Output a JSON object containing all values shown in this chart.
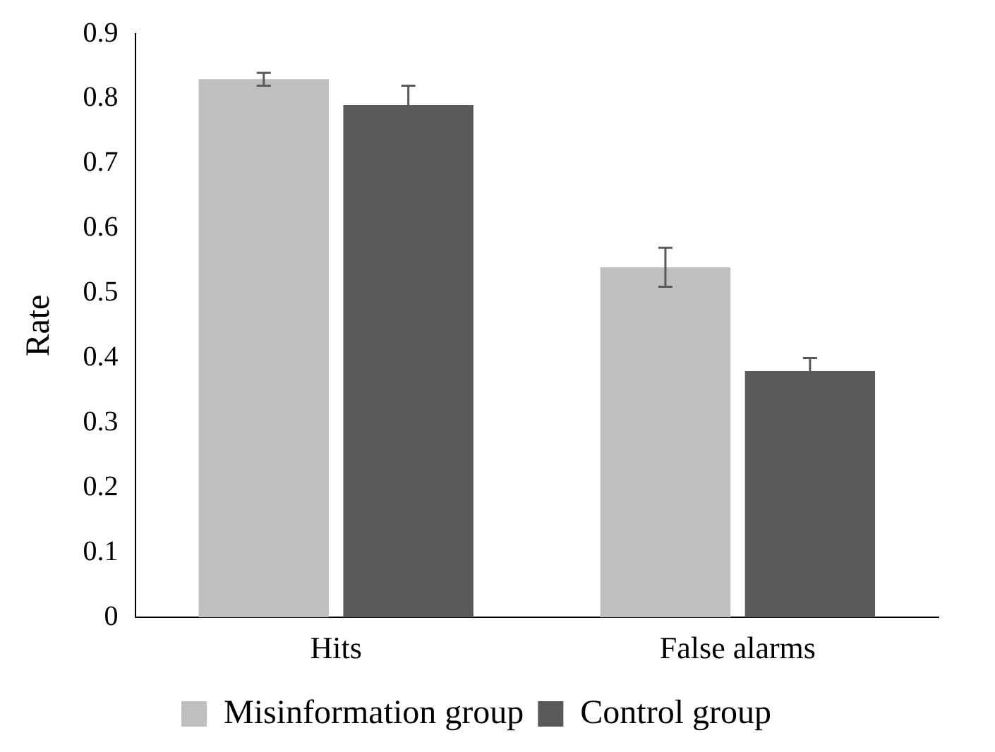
{
  "chart_data": {
    "type": "bar",
    "ylabel": "Rate",
    "categories": [
      "Hits",
      "False alarms"
    ],
    "series": [
      {
        "name": "Misinformation group",
        "color": "#bfbfbf",
        "values": [
          0.83,
          0.54
        ],
        "errors": [
          0.01,
          0.03
        ]
      },
      {
        "name": "Control group",
        "color": "#595959",
        "values": [
          0.79,
          0.38
        ],
        "errors": [
          0.03,
          0.02
        ]
      }
    ],
    "ylim": [
      0,
      0.9
    ],
    "yticks": [
      0,
      0.1,
      0.2,
      0.3,
      0.4,
      0.5,
      0.6,
      0.7,
      0.8,
      0.9
    ],
    "grid": false,
    "legend": "bottom"
  }
}
